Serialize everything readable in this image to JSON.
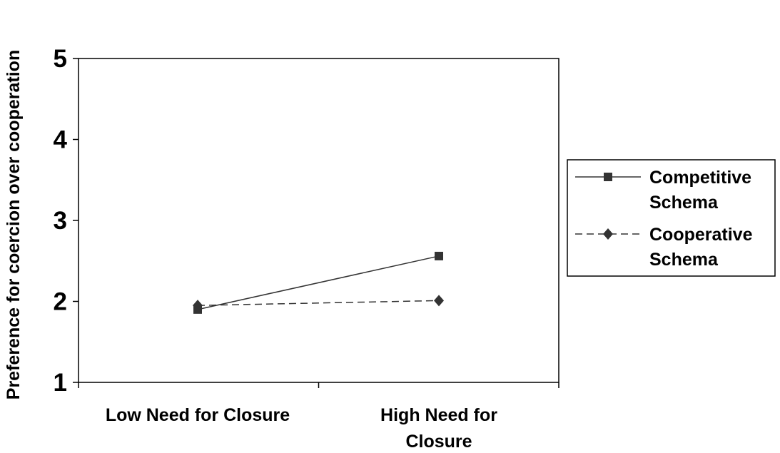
{
  "chart_data": {
    "type": "line",
    "categories": [
      "Low Need for Closure",
      "High Need for Closure"
    ],
    "category_lines": [
      [
        "Low Need for Closure"
      ],
      [
        "High Need for",
        "Closure"
      ]
    ],
    "series": [
      {
        "name": "Competitive Schema",
        "name_lines": [
          "Competitive",
          "Schema"
        ],
        "values": [
          1.9,
          2.56
        ],
        "line_style": "solid",
        "marker": "square",
        "color": "#333333"
      },
      {
        "name": "Cooperative Schema",
        "name_lines": [
          "Cooperative",
          "Schema"
        ],
        "values": [
          1.95,
          2.01
        ],
        "line_style": "dashed",
        "marker": "diamond",
        "color": "#333333"
      }
    ],
    "ylabel": "Preference for coercion over cooperation",
    "xlabel": "",
    "title": "",
    "ylim": [
      1,
      5
    ],
    "yticks": [
      1,
      2,
      3,
      4,
      5
    ],
    "grid": false,
    "legend_position": "right"
  }
}
